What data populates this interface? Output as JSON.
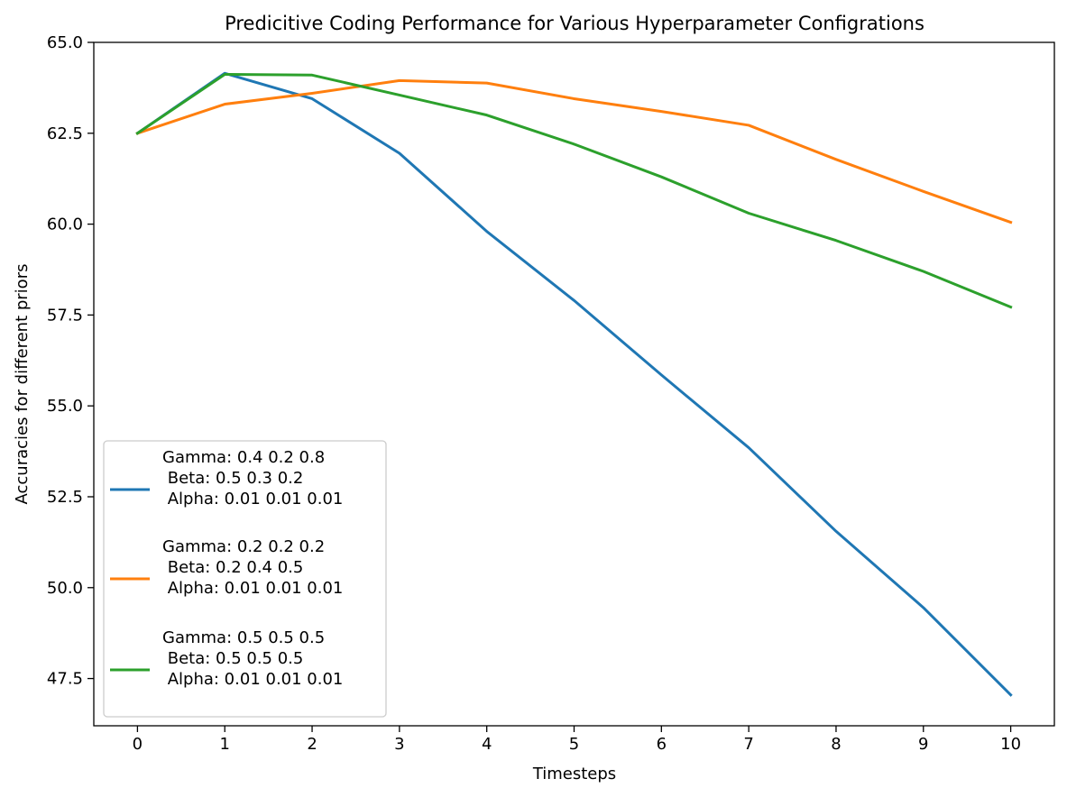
{
  "chart_data": {
    "type": "line",
    "title": "Predicitive Coding Performance for Various Hyperparameter Configrations",
    "xlabel": "Timesteps",
    "ylabel": "Accuracies for different priors",
    "x": [
      0,
      1,
      2,
      3,
      4,
      5,
      6,
      7,
      8,
      9,
      10
    ],
    "xticks": [
      "0",
      "1",
      "2",
      "3",
      "4",
      "5",
      "6",
      "7",
      "8",
      "9",
      "10"
    ],
    "yticks": [
      "47.5",
      "50.0",
      "52.5",
      "55.0",
      "57.5",
      "60.0",
      "62.5",
      "65.0"
    ],
    "xlim": [
      -0.5,
      10.5
    ],
    "ylim": [
      46.2,
      65.0
    ],
    "grid": false,
    "legend_position": "lower-left",
    "series": [
      {
        "name": [
          "Gamma: 0.4 0.2 0.8",
          " Beta: 0.5 0.3 0.2",
          " Alpha: 0.01 0.01 0.01"
        ],
        "color": "#1f77b4",
        "values": [
          62.5,
          64.15,
          63.45,
          61.95,
          59.8,
          57.9,
          55.85,
          53.85,
          51.55,
          49.45,
          47.05
        ]
      },
      {
        "name": [
          "Gamma: 0.2 0.2 0.2",
          " Beta: 0.2 0.4 0.5",
          " Alpha: 0.01 0.01 0.01"
        ],
        "color": "#ff7f0e",
        "values": [
          62.5,
          63.3,
          63.6,
          63.95,
          63.88,
          63.45,
          63.1,
          62.72,
          61.78,
          60.9,
          60.05
        ]
      },
      {
        "name": [
          "Gamma: 0.5 0.5 0.5",
          " Beta: 0.5 0.5 0.5",
          " Alpha: 0.01 0.01 0.01"
        ],
        "color": "#2ca02c",
        "values": [
          62.5,
          64.12,
          64.1,
          63.55,
          63.0,
          62.2,
          61.3,
          60.3,
          59.55,
          58.7,
          57.72
        ]
      }
    ]
  }
}
